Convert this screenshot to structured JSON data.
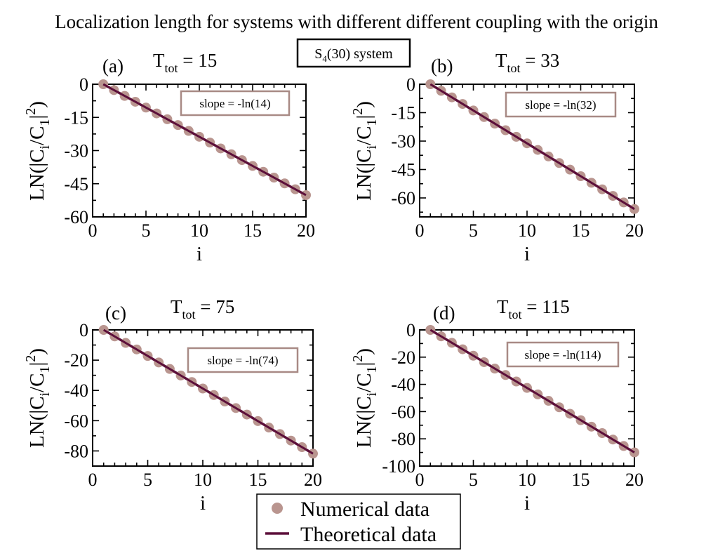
{
  "figure": {
    "title": "Localization length for systems with different different coupling with the origin",
    "system_label_main": "S",
    "system_label_sub": "4",
    "system_label_rest": "(30) system"
  },
  "legend": {
    "numerical": "Numerical data",
    "theoretical": "Theoretical data"
  },
  "colors": {
    "marker": "#b9958f",
    "line": "#5c0f3a",
    "box_border": "#a88a85",
    "axis": "#000000"
  },
  "axis_text": {
    "ylabel_main": "LN(|C",
    "ylabel_sub_i": "i",
    "ylabel_mid": "/C",
    "ylabel_sub_1": "1",
    "ylabel_end": "|",
    "ylabel_sup": "2",
    "ylabel_close": ")",
    "xlabel": "i",
    "ttot_prefix": "T",
    "ttot_sub": "tot"
  },
  "chart_data": [
    {
      "type": "scatter",
      "panel": "(a)",
      "ttot": "= 15",
      "slope_label": "slope = -ln(14)",
      "slope": -2.639,
      "xlabel": "i",
      "xlim": [
        0,
        20
      ],
      "ylim": [
        -60,
        0
      ],
      "xticks": [
        0,
        5,
        10,
        15,
        20
      ],
      "yticks": [
        0,
        -15,
        -30,
        -45,
        -60
      ],
      "series": [
        {
          "name": "Numerical data",
          "style": "markers",
          "x": [
            1,
            2,
            3,
            4,
            5,
            6,
            7,
            8,
            9,
            10,
            11,
            12,
            13,
            14,
            15,
            16,
            17,
            18,
            19,
            20
          ],
          "y": [
            0,
            -2.64,
            -5.28,
            -7.92,
            -10.56,
            -13.2,
            -15.83,
            -18.47,
            -21.11,
            -23.75,
            -26.39,
            -29.03,
            -31.67,
            -34.31,
            -36.95,
            -39.59,
            -42.23,
            -44.86,
            -47.5,
            -50.14
          ]
        },
        {
          "name": "Theoretical data",
          "style": "line",
          "x": [
            1,
            20
          ],
          "y": [
            0,
            -50.14
          ]
        }
      ]
    },
    {
      "type": "scatter",
      "panel": "(b)",
      "ttot": "= 33",
      "slope_label": "slope = -ln(32)",
      "slope": -3.466,
      "xlabel": "i",
      "xlim": [
        0,
        20
      ],
      "ylim": [
        -70,
        0
      ],
      "xticks": [
        0,
        5,
        10,
        15,
        20
      ],
      "yticks": [
        0,
        -15,
        -30,
        -45,
        -60
      ],
      "series": [
        {
          "name": "Numerical data",
          "style": "markers",
          "x": [
            1,
            2,
            3,
            4,
            5,
            6,
            7,
            8,
            9,
            10,
            11,
            12,
            13,
            14,
            15,
            16,
            17,
            18,
            19,
            20
          ],
          "y": [
            0,
            -3.47,
            -6.93,
            -10.4,
            -13.86,
            -17.33,
            -20.79,
            -24.26,
            -27.73,
            -31.19,
            -34.66,
            -38.12,
            -41.59,
            -45.05,
            -48.52,
            -51.99,
            -55.45,
            -58.92,
            -62.38,
            -65.85
          ]
        },
        {
          "name": "Theoretical data",
          "style": "line",
          "x": [
            1,
            20
          ],
          "y": [
            0,
            -65.85
          ]
        }
      ]
    },
    {
      "type": "scatter",
      "panel": "(c)",
      "ttot": "= 75",
      "slope_label": "slope = -ln(74)",
      "slope": -4.304,
      "xlabel": "i",
      "xlim": [
        0,
        20
      ],
      "ylim": [
        -90,
        0
      ],
      "xticks": [
        0,
        5,
        10,
        15,
        20
      ],
      "yticks": [
        0,
        -20,
        -40,
        -60,
        -80
      ],
      "series": [
        {
          "name": "Numerical data",
          "style": "markers",
          "x": [
            1,
            2,
            3,
            4,
            5,
            6,
            7,
            8,
            9,
            10,
            11,
            12,
            13,
            14,
            15,
            16,
            17,
            18,
            19,
            20
          ],
          "y": [
            0,
            -4.3,
            -8.61,
            -12.91,
            -17.22,
            -21.52,
            -25.82,
            -30.13,
            -34.43,
            -38.74,
            -43.04,
            -47.34,
            -51.65,
            -55.95,
            -60.26,
            -64.56,
            -68.86,
            -73.17,
            -77.47,
            -81.78
          ]
        },
        {
          "name": "Theoretical data",
          "style": "line",
          "x": [
            1,
            20
          ],
          "y": [
            0,
            -81.78
          ]
        }
      ]
    },
    {
      "type": "scatter",
      "panel": "(d)",
      "ttot": "= 115",
      "slope_label": "slope = -ln(114)",
      "slope": -4.736,
      "xlabel": "i",
      "xlim": [
        0,
        20
      ],
      "ylim": [
        -100,
        0
      ],
      "xticks": [
        0,
        5,
        10,
        15,
        20
      ],
      "yticks": [
        0,
        -20,
        -40,
        -60,
        -80,
        -100
      ],
      "series": [
        {
          "name": "Numerical data",
          "style": "markers",
          "x": [
            1,
            2,
            3,
            4,
            5,
            6,
            7,
            8,
            9,
            10,
            11,
            12,
            13,
            14,
            15,
            16,
            17,
            18,
            19,
            20
          ],
          "y": [
            0,
            -4.74,
            -9.47,
            -14.21,
            -18.94,
            -23.68,
            -28.42,
            -33.15,
            -37.89,
            -42.62,
            -47.36,
            -52.09,
            -56.83,
            -61.57,
            -66.3,
            -71.04,
            -75.77,
            -80.51,
            -85.25,
            -89.98
          ]
        },
        {
          "name": "Theoretical data",
          "style": "line",
          "x": [
            1,
            20
          ],
          "y": [
            0,
            -89.98
          ]
        }
      ]
    }
  ]
}
